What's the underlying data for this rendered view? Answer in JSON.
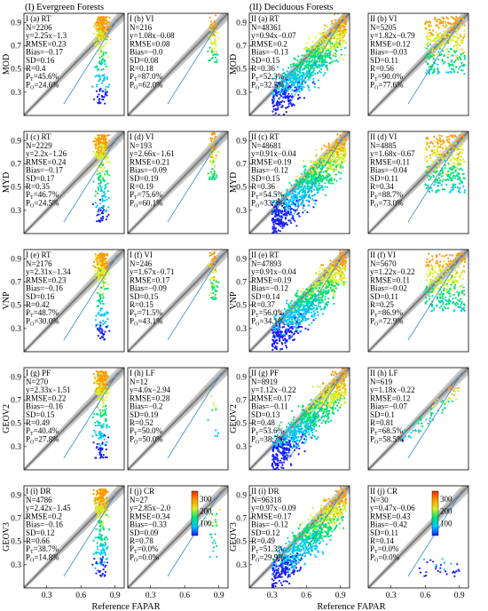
{
  "group_titles": [
    "(I) Evergreen Forests",
    "(II) Deciduous Forests"
  ],
  "row_labels": [
    "MOD",
    "MYD",
    "VNP",
    "GEOV2",
    "GEOV3"
  ],
  "xlabel": "Reference FAPAR",
  "x_ticks": [
    "0.3",
    "0.6",
    "0.9"
  ],
  "y_ticks": [
    "0.9",
    "0.7",
    "0.5",
    "0.3"
  ],
  "colorbar": {
    "ticks": [
      "300",
      "200",
      "100"
    ],
    "range": [
      0,
      365
    ],
    "colors": [
      "#1a1aff",
      "#00c8ff",
      "#00e07a",
      "#d8ef2a",
      "#ff9a00",
      "#e52a00"
    ]
  },
  "chart_data": [
    {
      "type": "scatter",
      "group": "I",
      "row": "MOD",
      "title": "I (a) RT",
      "stats": [
        "N=2206",
        "y=2.25x−1.3",
        "RMSE=0.23",
        "Bias=−0.17",
        "SD=0.16",
        "R=0.4",
        "P_T=45.6%",
        "P_O=24.6%"
      ]
    },
    {
      "type": "scatter",
      "group": "I",
      "row": "MOD",
      "title": "I (b) VI",
      "stats": [
        "N=216",
        "y=1.08x−0.08",
        "RMSE=0.08",
        "Bias=−0.0",
        "SD=0.08",
        "R=0.18",
        "P_T=87.0%",
        "P_O=62.0%"
      ]
    },
    {
      "type": "scatter",
      "group": "II",
      "row": "MOD",
      "title": "II (a) RT",
      "stats": [
        "N=48361",
        "y=0.94x−0.07",
        "RMSE=0.2",
        "Bias=−0.13",
        "SD=0.15",
        "R=0.36",
        "P_T=52.3%",
        "P_O=32.5%"
      ]
    },
    {
      "type": "scatter",
      "group": "II",
      "row": "MOD",
      "title": "II (b) VI",
      "stats": [
        "N=5205",
        "y=1.82x−0.79",
        "RMSE=0.12",
        "Bias=−0.03",
        "SD=0.11",
        "R=0.56",
        "P_T=90.0%",
        "P_O=77.6%"
      ]
    },
    {
      "type": "scatter",
      "group": "I",
      "row": "MYD",
      "title": "I (c) RT",
      "stats": [
        "N=2229",
        "y=2.2x−1.26",
        "RMSE=0.24",
        "Bias=−0.17",
        "SD=0.17",
        "R=0.35",
        "P_T=46.7%",
        "P_O=24.5%"
      ]
    },
    {
      "type": "scatter",
      "group": "I",
      "row": "MYD",
      "title": "I (d) VI",
      "stats": [
        "N=193",
        "y=2.66x−1.61",
        "RMSE=0.21",
        "Bias=−0.09",
        "SD=0.19",
        "R=0.19",
        "P_T=75.6%",
        "P_O=60.1%"
      ]
    },
    {
      "type": "scatter",
      "group": "II",
      "row": "MYD",
      "title": "II (c) RT",
      "stats": [
        "N=48681",
        "y=0.91x−0.04",
        "RMSE=0.19",
        "Bias=−0.12",
        "SD=0.15",
        "R=0.36",
        "P_T=54.5%",
        "P_O=33.3%"
      ]
    },
    {
      "type": "scatter",
      "group": "II",
      "row": "MYD",
      "title": "II (d) VI",
      "stats": [
        "N=4885",
        "y=1.68x−0.67",
        "RMSE=0.11",
        "Bias=−0.04",
        "SD=0.11",
        "R=0.34",
        "P_T=88.7%",
        "P_O=73.0%"
      ]
    },
    {
      "type": "scatter",
      "group": "I",
      "row": "VNP",
      "title": "I (e) RT",
      "stats": [
        "N=2176",
        "y=2.31x−1.34",
        "RMSE=0.23",
        "Bias=−0.16",
        "SD=0.16",
        "R=0.42",
        "P_T=48.7%",
        "P_O=30.0%"
      ]
    },
    {
      "type": "scatter",
      "group": "I",
      "row": "VNP",
      "title": "I (f) VI",
      "stats": [
        "N=246",
        "y=1.67x−0.71",
        "RMSE=0.17",
        "Bias=−0.09",
        "SD=0.15",
        "R=0.15",
        "P_T=71.5%",
        "P_O=43.1%"
      ]
    },
    {
      "type": "scatter",
      "group": "II",
      "row": "VNP",
      "title": "II (e) RT",
      "stats": [
        "N=47893",
        "y=0.91x−0.04",
        "RMSE=0.19",
        "Bias=−0.12",
        "SD=0.14",
        "R=0.37",
        "P_T=56.0%",
        "P_O=34.1%"
      ]
    },
    {
      "type": "scatter",
      "group": "II",
      "row": "VNP",
      "title": "II (f) VI",
      "stats": [
        "N=5670",
        "y=1.22x−0.22",
        "RMSE=0.11",
        "Bias=−0.02",
        "SD=0.11",
        "R=0.25",
        "P_T=86.9%",
        "P_O=72.9%"
      ]
    },
    {
      "type": "scatter",
      "group": "I",
      "row": "GEOV2",
      "title": "I (g) PF",
      "stats": [
        "N=270",
        "y=2.33x−1.51",
        "RMSE=0.22",
        "Bias=−0.16",
        "SD=0.15",
        "R=0.49",
        "P_T=40.4%",
        "P_O=27.8%"
      ]
    },
    {
      "type": "scatter",
      "group": "I",
      "row": "GEOV2",
      "title": "I (h) LF",
      "stats": [
        "N=12",
        "y=4.0x−2.94",
        "RMSE=0.28",
        "Bias=−0.2",
        "SD=0.19",
        "R=0.52",
        "P_T=50.0%",
        "P_O=50.0%"
      ]
    },
    {
      "type": "scatter",
      "group": "II",
      "row": "GEOV2",
      "title": "II (g) PF",
      "stats": [
        "N=8919",
        "y=1.12x−0.22",
        "RMSE=0.17",
        "Bias=−0.11",
        "SD=0.13",
        "R=0.48",
        "P_T=53.6%",
        "P_O=38.7%"
      ]
    },
    {
      "type": "scatter",
      "group": "II",
      "row": "GEOV2",
      "title": "II (h) LF",
      "stats": [
        "N=619",
        "y=1.18x−0.22",
        "RMSE=0.12",
        "Bias=−0.07",
        "SD=0.1",
        "R=0.81",
        "P_T=68.5%",
        "P_O=58.5%"
      ]
    },
    {
      "type": "scatter",
      "group": "I",
      "row": "GEOV3",
      "title": "I (i) DR",
      "stats": [
        "N=4786",
        "y=2.42x−1.45",
        "RMSE=0.2",
        "Bias=−0.16",
        "SD=0.12",
        "R=0.66",
        "P_T=38.7%",
        "P_O=14.8%"
      ]
    },
    {
      "type": "scatter",
      "group": "I",
      "row": "GEOV3",
      "title": "I (j) CR",
      "stats": [
        "N=27",
        "y=2.85x−2.0",
        "RMSE=0.34",
        "Bias=−0.33",
        "SD=0.09",
        "R=0.78",
        "P_T=0.0%",
        "P_O=0.0%"
      ]
    },
    {
      "type": "scatter",
      "group": "II",
      "row": "GEOV3",
      "title": "II (i) DR",
      "stats": [
        "N=96318",
        "y=0.97x−0.09",
        "RMSE=0.17",
        "Bias=−0.12",
        "SD=0.12",
        "R=0.49",
        "P_T=51.3%",
        "P_O=29.9%"
      ]
    },
    {
      "type": "scatter",
      "group": "II",
      "row": "GEOV3",
      "title": "II (j) CR",
      "stats": [
        "N=30",
        "y=0.47x−0.06",
        "RMSE=0.43",
        "Bias=−0.42",
        "SD=0.11",
        "R=0.14",
        "P_T=0.0%",
        "P_O=0.0%"
      ]
    }
  ]
}
